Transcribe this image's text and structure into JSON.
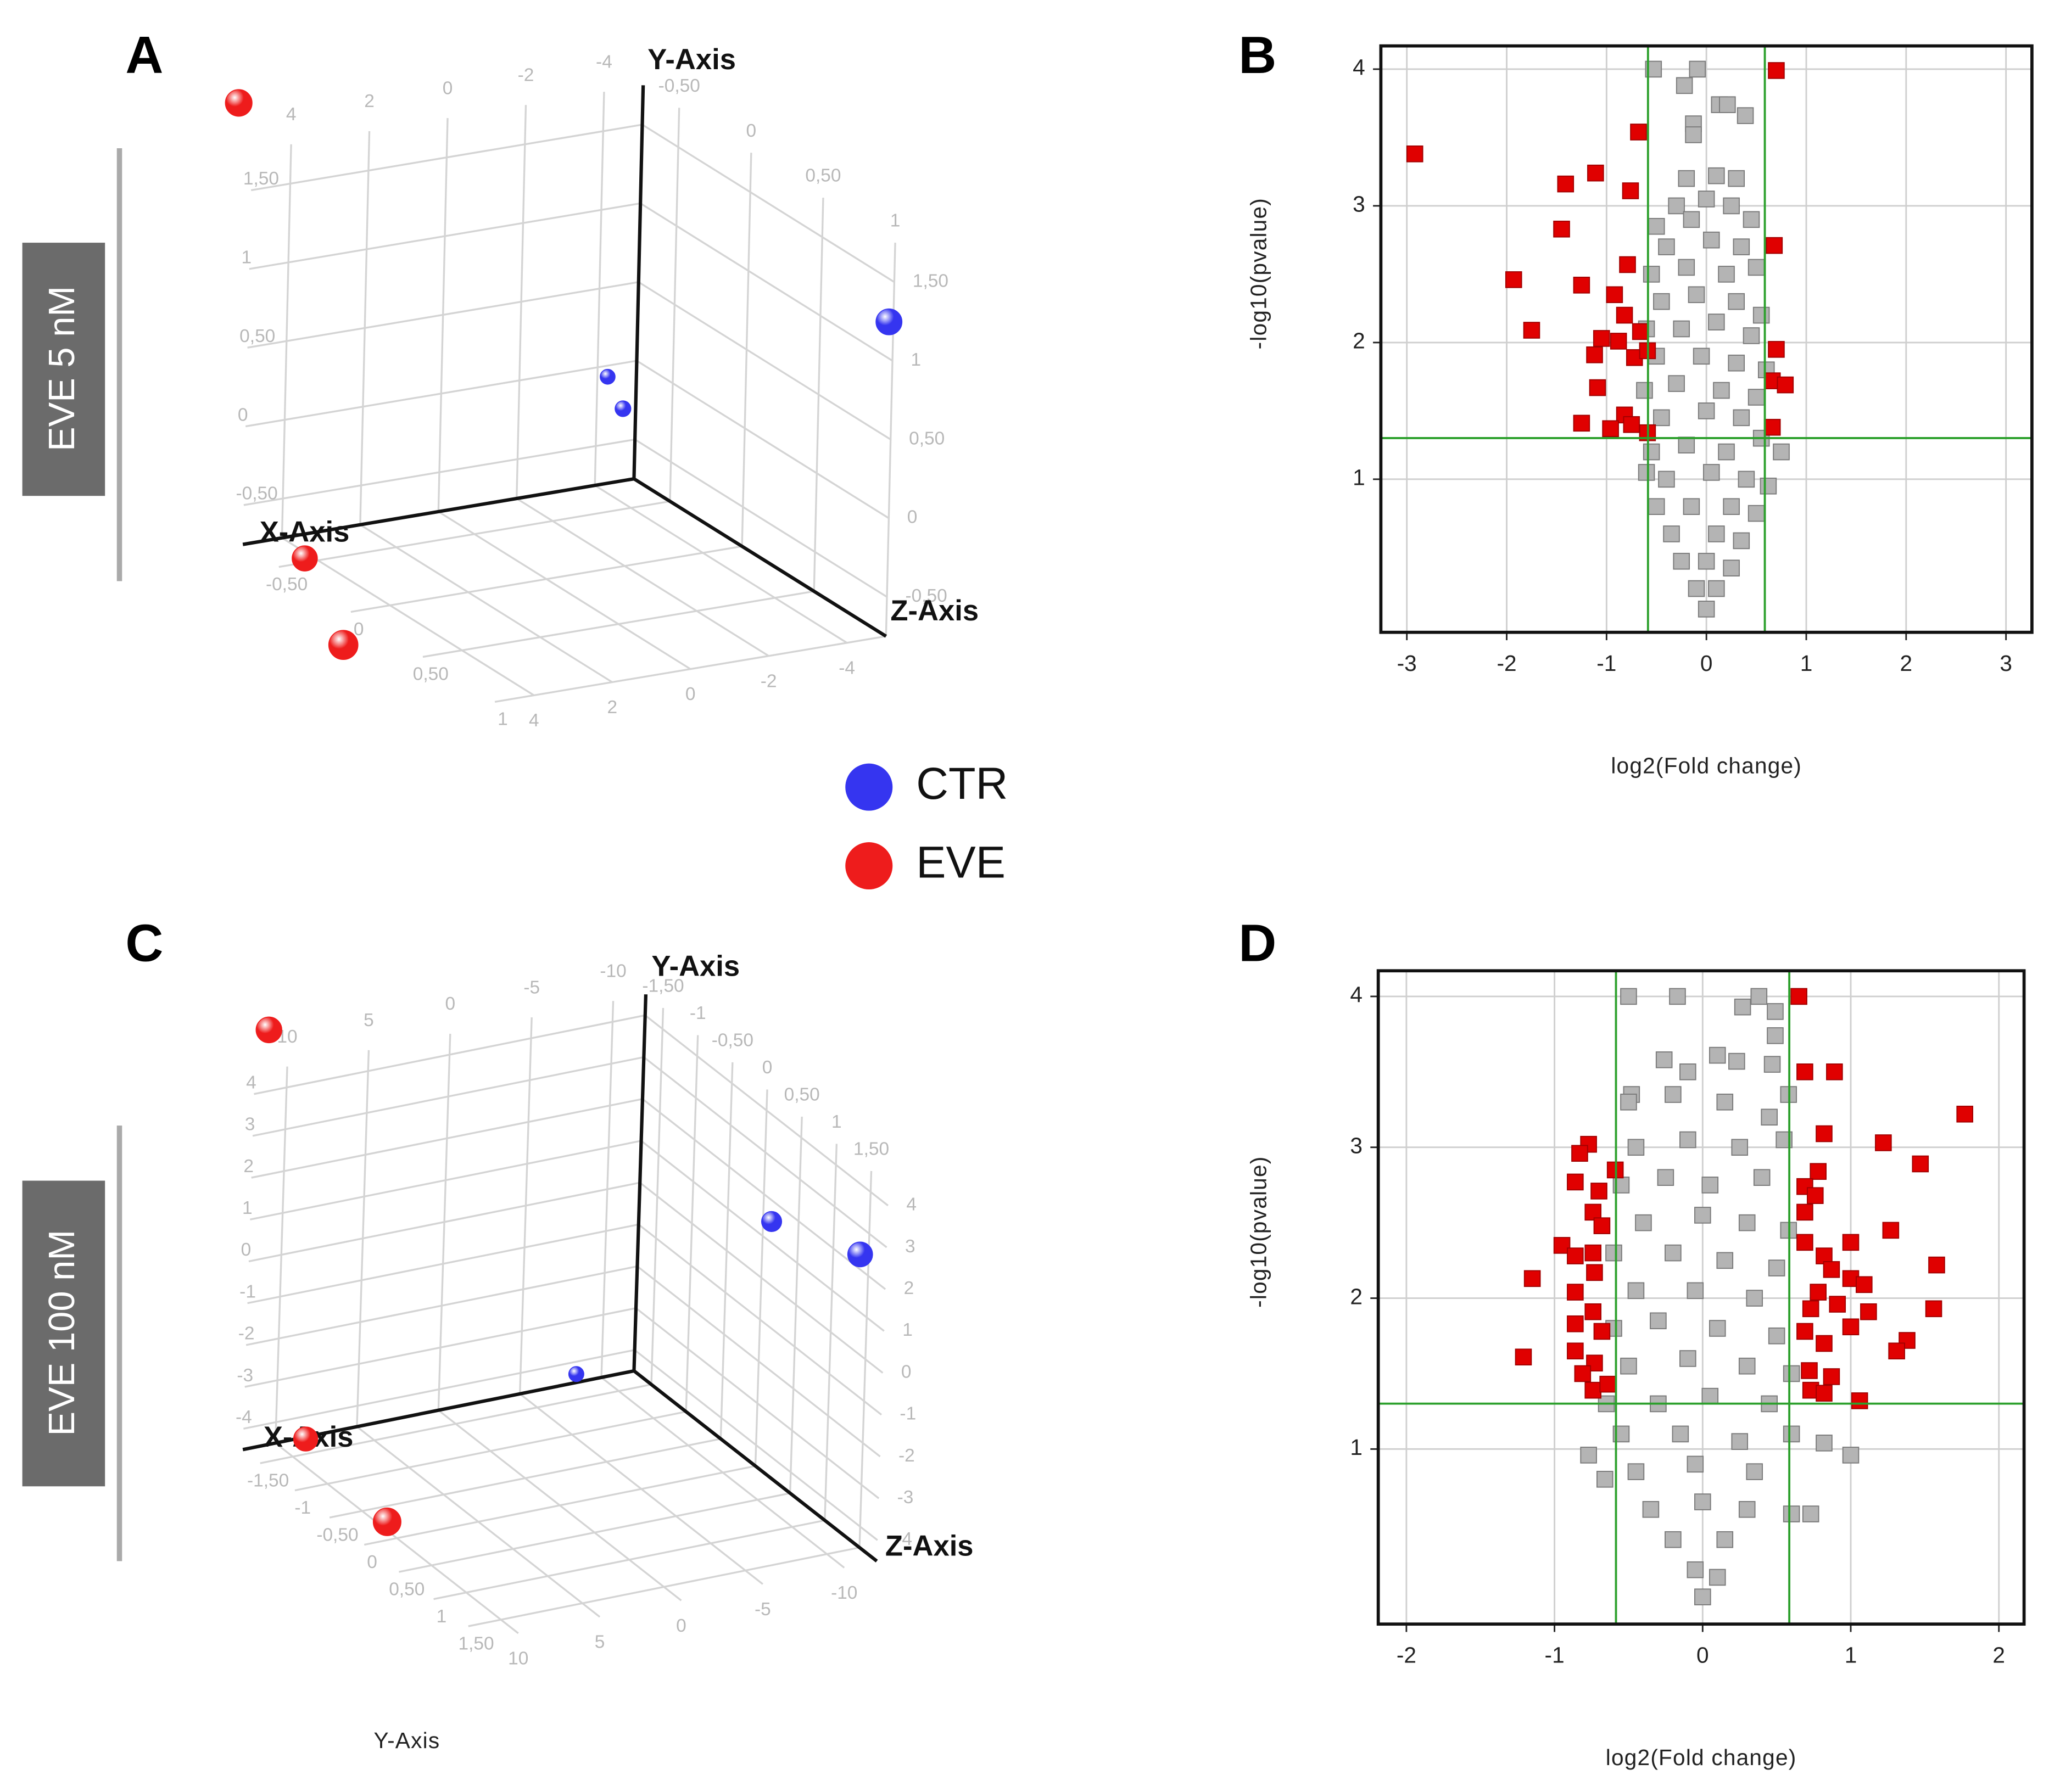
{
  "chart_data": [
    {
      "type": "scatter3d",
      "panel": "A",
      "group_label": "EVE 5 nM",
      "axis_labels": {
        "x": "X-Axis",
        "y": "Y-Axis",
        "z": "Z-Axis"
      },
      "xlim": [
        -5,
        5
      ],
      "ylim": [
        -0.75,
        1.75
      ],
      "zlim": [
        -0.75,
        1.0
      ],
      "xticks": [
        -4,
        -2,
        0,
        2,
        4
      ],
      "yticks": [
        {
          "value": -0.5,
          "label": "-0,50"
        },
        0,
        {
          "value": 0.5,
          "label": "0,50"
        },
        1,
        {
          "value": 1.5,
          "label": "1,50"
        }
      ],
      "zticks": [
        {
          "value": -0.5,
          "label": "-0,50"
        },
        0,
        {
          "value": 0.5,
          "label": "0,50"
        },
        1
      ],
      "grid": true,
      "series": [
        {
          "name": "CTR",
          "color": "#3535f0",
          "x": [
            -5,
            -4,
            -4
          ],
          "y": [
            1.23,
            -0.02,
            -0.16
          ],
          "z": [
            0.97,
            -0.68,
            -0.57
          ]
        },
        {
          "name": "EVE",
          "color": "#ee1c1c",
          "x": [
            5.37,
            3.74,
            4.31
          ],
          "y": [
            2.07,
            -0.84,
            -1.12
          ],
          "z": [
            -0.75,
            -0.66,
            -0.23
          ]
        }
      ]
    },
    {
      "type": "scatter",
      "panel": "B",
      "xlabel": "log2(Fold change)",
      "ylabel": "-log10(pvalue)",
      "xlim": [
        -3.26,
        3.26
      ],
      "ylim": [
        -0.12,
        4.17
      ],
      "xticks": [
        -3,
        -2,
        -1,
        0,
        1,
        2,
        3
      ],
      "yticks": [
        1,
        2,
        3,
        4
      ],
      "grid": true,
      "vlines": [
        -0.585,
        0.585
      ],
      "hlines": [
        1.301
      ],
      "threshold_color": "#2ca02c",
      "series": [
        {
          "color": "#b4b4b4",
          "x": [
            -0.53,
            -0.09,
            -0.22,
            0.13,
            -0.13,
            -0.13,
            0.39,
            0.21,
            -0.2,
            0.1,
            0.3,
            -0.3,
            0,
            0.25,
            -0.5,
            -0.15,
            0.45,
            -0.4,
            0.05,
            0.35,
            -0.55,
            -0.2,
            0.2,
            0.5,
            -0.45,
            -0.1,
            0.3,
            0.55,
            -0.6,
            -0.25,
            0.1,
            0.45,
            -0.5,
            -0.05,
            0.3,
            0.6,
            -0.62,
            -0.3,
            0.15,
            0.5,
            -0.45,
            0,
            0.35,
            0.75,
            -0.55,
            -0.2,
            0.2,
            0.55,
            -0.4,
            0.05,
            0.4,
            -0.5,
            -0.15,
            0.25,
            0.5,
            -0.35,
            0.1,
            0.35,
            -0.25,
            0,
            0.25,
            -0.1,
            0.1,
            0,
            -0.6,
            0.62
          ],
          "y": [
            4.0,
            4.0,
            3.88,
            3.74,
            3.6,
            3.52,
            3.66,
            3.74,
            3.2,
            3.22,
            3.2,
            3.0,
            3.05,
            3.0,
            2.85,
            2.9,
            2.9,
            2.7,
            2.75,
            2.7,
            2.5,
            2.55,
            2.5,
            2.55,
            2.3,
            2.35,
            2.3,
            2.2,
            2.1,
            2.1,
            2.15,
            2.05,
            1.9,
            1.9,
            1.85,
            1.8,
            1.65,
            1.7,
            1.65,
            1.6,
            1.45,
            1.5,
            1.45,
            1.2,
            1.2,
            1.25,
            1.2,
            1.3,
            1.0,
            1.05,
            1.0,
            0.8,
            0.8,
            0.8,
            0.75,
            0.6,
            0.6,
            0.55,
            0.4,
            0.4,
            0.35,
            0.2,
            0.2,
            0.05,
            1.05,
            0.95
          ]
        },
        {
          "color": "#e00000",
          "x": [
            -2.92,
            0.7,
            -0.68,
            -1.41,
            -1.11,
            -0.76,
            -1.45,
            0.68,
            -1.93,
            -1.25,
            -0.79,
            -0.92,
            -0.82,
            -1.75,
            -1.05,
            -1.12,
            -0.88,
            -0.66,
            -0.72,
            -0.59,
            0.7,
            -1.09,
            0.66,
            0.79,
            -1.25,
            -0.82,
            -0.75,
            -0.96,
            -0.59,
            0.66
          ],
          "y": [
            3.38,
            3.99,
            3.54,
            3.16,
            3.24,
            3.11,
            2.83,
            2.71,
            2.46,
            2.42,
            2.57,
            2.35,
            2.2,
            2.09,
            2.03,
            1.91,
            2.01,
            2.08,
            1.89,
            1.94,
            1.95,
            1.67,
            1.72,
            1.69,
            1.41,
            1.47,
            1.4,
            1.37,
            1.34,
            1.38
          ]
        }
      ]
    },
    {
      "type": "scatter3d",
      "panel": "C",
      "group_label": "EVE 100 nM",
      "annotation": "Y-Axis",
      "axis_labels": {
        "x": "X-Axis",
        "y": "Y-Axis",
        "z": "Z-Axis"
      },
      "xlim": [
        -12,
        12
      ],
      "ylim": [
        -4.5,
        4.5
      ],
      "zlim": [
        -1.75,
        1.75
      ],
      "xticks": [
        -10,
        -5,
        0,
        5,
        10
      ],
      "yticks": [
        -4,
        -3,
        -2,
        -1,
        0,
        1,
        2,
        3,
        4
      ],
      "zticks": [
        {
          "value": -1.5,
          "label": "-1,50"
        },
        -1,
        {
          "value": -0.5,
          "label": "-0,50"
        },
        0,
        {
          "value": 0.5,
          "label": "0,50"
        },
        1,
        {
          "value": 1.5,
          "label": "1,50"
        }
      ],
      "grid": true,
      "series": [
        {
          "color": "#3535f0",
          "x": [
            -12,
            -12,
            -8.4
          ],
          "y": [
            1.5,
            2.35,
            -4.28
          ],
          "z": [
            0.12,
            1.38,
            -1.74
          ]
        },
        {
          "color": "#ee1c1c",
          "x": [
            11.2,
            8.14,
            7.56
          ],
          "y": [
            5.47,
            -4.55,
            -5.21
          ],
          "z": [
            -1.75,
            -1.75,
            -0.7
          ]
        }
      ]
    },
    {
      "type": "scatter",
      "panel": "D",
      "xlabel": "log2(Fold change)",
      "ylabel": "-log10(pvalue)",
      "xlim": [
        -2.19,
        2.17
      ],
      "ylim": [
        -0.16,
        4.17
      ],
      "xticks": [
        -2,
        -1,
        0,
        1,
        2
      ],
      "yticks": [
        1,
        2,
        3,
        4
      ],
      "grid": true,
      "vlines": [
        -0.585,
        0.585
      ],
      "hlines": [
        1.301
      ],
      "threshold_color": "#2ca02c",
      "series": [
        {
          "color": "#b4b4b4",
          "x": [
            -0.5,
            -0.17,
            0.27,
            0.38,
            0.49,
            0.49,
            0.1,
            0.23,
            -0.26,
            -0.1,
            -0.48,
            0.58,
            0.47,
            1.0,
            0.82,
            0.6,
            0.73,
            -0.77,
            -0.66,
            -0.5,
            -0.2,
            0.15,
            0.45,
            -0.45,
            -0.1,
            0.25,
            0.55,
            -0.55,
            -0.25,
            0.05,
            0.4,
            -0.4,
            0,
            0.3,
            0.58,
            -0.6,
            -0.2,
            0.15,
            0.5,
            -0.45,
            -0.05,
            0.35,
            -0.6,
            -0.3,
            0.1,
            0.5,
            -0.5,
            -0.1,
            0.3,
            0.6,
            -0.65,
            -0.3,
            0.05,
            0.45,
            -0.55,
            -0.15,
            0.25,
            0.6,
            -0.45,
            -0.05,
            0.35,
            -0.35,
            0,
            0.3,
            -0.2,
            0.15,
            -0.05,
            0.1,
            0
          ],
          "y": [
            4.0,
            4.0,
            3.93,
            4.0,
            3.9,
            3.74,
            3.61,
            3.57,
            3.58,
            3.5,
            3.35,
            3.35,
            3.55,
            0.96,
            1.04,
            0.57,
            0.57,
            0.96,
            0.8,
            3.3,
            3.35,
            3.3,
            3.2,
            3.0,
            3.05,
            3.0,
            3.05,
            2.75,
            2.8,
            2.75,
            2.8,
            2.5,
            2.55,
            2.5,
            2.45,
            2.3,
            2.3,
            2.25,
            2.2,
            2.05,
            2.05,
            2.0,
            1.8,
            1.85,
            1.8,
            1.75,
            1.55,
            1.6,
            1.55,
            1.5,
            1.3,
            1.3,
            1.35,
            1.3,
            1.1,
            1.1,
            1.05,
            1.1,
            0.85,
            0.9,
            0.85,
            0.6,
            0.65,
            0.6,
            0.4,
            0.4,
            0.2,
            0.15,
            0.02
          ]
        },
        {
          "color": "#e00000",
          "x": [
            0.65,
            0.69,
            0.89,
            1.77,
            0.82,
            1.22,
            1.47,
            -0.77,
            -0.83,
            -0.59,
            -0.86,
            -0.7,
            0.78,
            0.69,
            0.76,
            0.69,
            -0.74,
            -0.68,
            1.27,
            1.0,
            -0.95,
            -0.86,
            -0.74,
            0.69,
            0.82,
            1.58,
            -1.15,
            -0.73,
            -0.86,
            0.87,
            1.0,
            1.09,
            0.78,
            0.73,
            0.91,
            1.12,
            1.56,
            -0.74,
            -0.86,
            -0.68,
            1.0,
            0.69,
            0.82,
            1.38,
            1.31,
            -0.86,
            -0.73,
            -0.81,
            -1.21,
            0.72,
            0.87,
            -0.74,
            -0.64,
            0.73,
            0.82,
            1.06
          ],
          "y": [
            4.0,
            3.5,
            3.5,
            3.22,
            3.09,
            3.03,
            2.89,
            3.02,
            2.96,
            2.85,
            2.77,
            2.71,
            2.84,
            2.74,
            2.68,
            2.57,
            2.57,
            2.48,
            2.45,
            2.37,
            2.35,
            2.28,
            2.3,
            2.37,
            2.28,
            2.22,
            2.13,
            2.17,
            2.04,
            2.19,
            2.13,
            2.09,
            2.04,
            1.93,
            1.96,
            1.91,
            1.93,
            1.91,
            1.83,
            1.78,
            1.81,
            1.78,
            1.7,
            1.72,
            1.65,
            1.65,
            1.57,
            1.5,
            1.61,
            1.52,
            1.48,
            1.39,
            1.43,
            1.39,
            1.37,
            1.32
          ]
        }
      ]
    }
  ]
}
